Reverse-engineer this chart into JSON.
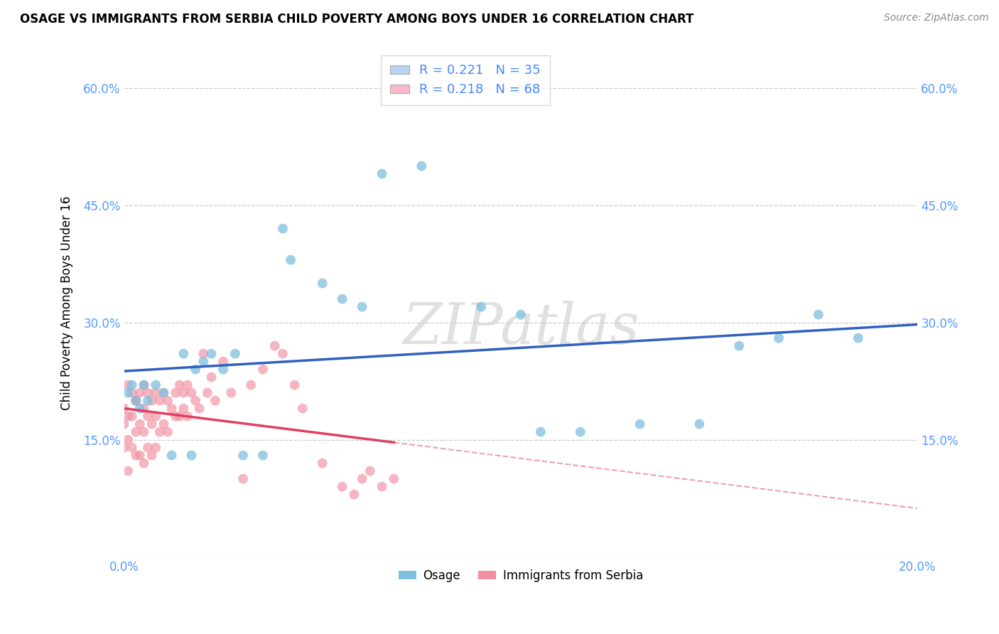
{
  "title": "OSAGE VS IMMIGRANTS FROM SERBIA CHILD POVERTY AMONG BOYS UNDER 16 CORRELATION CHART",
  "source": "Source: ZipAtlas.com",
  "ylabel": "Child Poverty Among Boys Under 16",
  "xlim": [
    0.0,
    0.2
  ],
  "ylim": [
    0.0,
    0.65
  ],
  "xticks": [
    0.0,
    0.04,
    0.08,
    0.12,
    0.16,
    0.2
  ],
  "yticks": [
    0.0,
    0.15,
    0.3,
    0.45,
    0.6
  ],
  "osage_color": "#7fbfdf",
  "serbia_color": "#f090a0",
  "osage_line_color": "#3060c0",
  "serbia_line_color": "#e04060",
  "osage_x": [
    0.001,
    0.002,
    0.003,
    0.004,
    0.005,
    0.006,
    0.008,
    0.01,
    0.012,
    0.015,
    0.017,
    0.018,
    0.02,
    0.022,
    0.025,
    0.028,
    0.03,
    0.035,
    0.04,
    0.042,
    0.05,
    0.055,
    0.06,
    0.065,
    0.075,
    0.09,
    0.1,
    0.105,
    0.115,
    0.13,
    0.145,
    0.155,
    0.165,
    0.175,
    0.185
  ],
  "osage_y": [
    0.21,
    0.22,
    0.2,
    0.19,
    0.22,
    0.2,
    0.22,
    0.21,
    0.13,
    0.26,
    0.13,
    0.24,
    0.25,
    0.26,
    0.24,
    0.26,
    0.13,
    0.13,
    0.42,
    0.38,
    0.35,
    0.33,
    0.32,
    0.49,
    0.5,
    0.32,
    0.31,
    0.16,
    0.16,
    0.17,
    0.17,
    0.27,
    0.28,
    0.31,
    0.28
  ],
  "serbia_x": [
    0.0,
    0.0,
    0.0,
    0.001,
    0.001,
    0.001,
    0.001,
    0.002,
    0.002,
    0.002,
    0.003,
    0.003,
    0.003,
    0.003,
    0.004,
    0.004,
    0.004,
    0.005,
    0.005,
    0.005,
    0.005,
    0.006,
    0.006,
    0.006,
    0.007,
    0.007,
    0.007,
    0.008,
    0.008,
    0.008,
    0.009,
    0.009,
    0.01,
    0.01,
    0.011,
    0.011,
    0.012,
    0.013,
    0.013,
    0.014,
    0.014,
    0.015,
    0.015,
    0.016,
    0.016,
    0.017,
    0.018,
    0.019,
    0.02,
    0.021,
    0.022,
    0.023,
    0.025,
    0.027,
    0.03,
    0.032,
    0.035,
    0.038,
    0.04,
    0.043,
    0.045,
    0.05,
    0.055,
    0.058,
    0.06,
    0.062,
    0.065,
    0.068
  ],
  "serbia_y": [
    0.19,
    0.17,
    0.14,
    0.22,
    0.18,
    0.15,
    0.11,
    0.21,
    0.18,
    0.14,
    0.2,
    0.16,
    0.13,
    0.2,
    0.21,
    0.17,
    0.13,
    0.22,
    0.19,
    0.16,
    0.12,
    0.21,
    0.18,
    0.14,
    0.2,
    0.17,
    0.13,
    0.21,
    0.18,
    0.14,
    0.2,
    0.16,
    0.21,
    0.17,
    0.2,
    0.16,
    0.19,
    0.21,
    0.18,
    0.22,
    0.18,
    0.21,
    0.19,
    0.22,
    0.18,
    0.21,
    0.2,
    0.19,
    0.26,
    0.21,
    0.23,
    0.2,
    0.25,
    0.21,
    0.1,
    0.22,
    0.24,
    0.27,
    0.26,
    0.22,
    0.19,
    0.12,
    0.09,
    0.08,
    0.1,
    0.11,
    0.09,
    0.1
  ],
  "watermark": "ZIPatlas",
  "background_color": "#ffffff",
  "grid_color": "#cccccc"
}
